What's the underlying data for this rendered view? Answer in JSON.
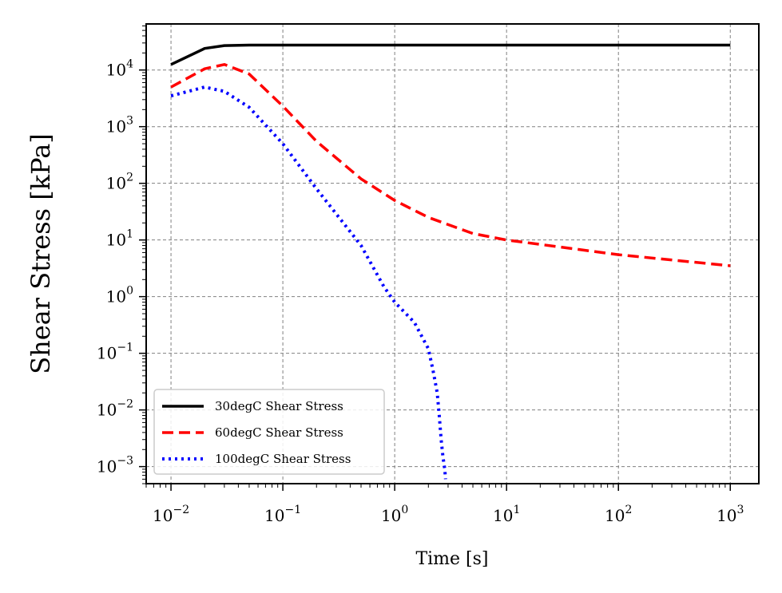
{
  "chart_data": {
    "type": "line",
    "xlabel": "Time [s]",
    "ylabel": "Shear Stress [kPa]",
    "xscale": "log",
    "yscale": "log",
    "xlim": [
      0.006,
      1800
    ],
    "ylim": [
      0.0005,
      65000
    ],
    "grid": true,
    "legend_position": "lower-left",
    "x_ticks": [
      {
        "value": 0.01,
        "base": "10",
        "exp": "−2"
      },
      {
        "value": 0.1,
        "base": "10",
        "exp": "−1"
      },
      {
        "value": 1,
        "base": "10",
        "exp": "0"
      },
      {
        "value": 10,
        "base": "10",
        "exp": "1"
      },
      {
        "value": 100,
        "base": "10",
        "exp": "2"
      },
      {
        "value": 1000,
        "base": "10",
        "exp": "3"
      }
    ],
    "y_ticks": [
      {
        "value": 0.001,
        "base": "10",
        "exp": "−3"
      },
      {
        "value": 0.01,
        "base": "10",
        "exp": "−2"
      },
      {
        "value": 0.1,
        "base": "10",
        "exp": "−1"
      },
      {
        "value": 1,
        "base": "10",
        "exp": "0"
      },
      {
        "value": 10,
        "base": "10",
        "exp": "1"
      },
      {
        "value": 100,
        "base": "10",
        "exp": "2"
      },
      {
        "value": 1000,
        "base": "10",
        "exp": "3"
      },
      {
        "value": 10000,
        "base": "10",
        "exp": "4"
      }
    ],
    "series": [
      {
        "name": "30degC Shear Stress",
        "color": "#000000",
        "style": "solid",
        "x": [
          0.01,
          0.02,
          0.03,
          0.05,
          0.1,
          1,
          10,
          100,
          1000
        ],
        "y": [
          12500,
          24000,
          27000,
          27500,
          27500,
          27500,
          27500,
          27500,
          27500
        ]
      },
      {
        "name": "60degC Shear Stress",
        "color": "#ff0000",
        "style": "dashed",
        "x": [
          0.01,
          0.02,
          0.03,
          0.05,
          0.1,
          0.2,
          0.5,
          1,
          2,
          5,
          10,
          100,
          1000
        ],
        "y": [
          5000,
          10500,
          12500,
          8500,
          2300,
          550,
          120,
          50,
          25,
          13,
          10,
          5.5,
          3.5
        ]
      },
      {
        "name": "100degC Shear Stress",
        "color": "#0000ff",
        "style": "dotted",
        "x": [
          0.01,
          0.02,
          0.03,
          0.05,
          0.1,
          0.2,
          0.5,
          0.8,
          1,
          1.5,
          2,
          2.2,
          2.4,
          2.5,
          2.6,
          2.7,
          2.8,
          2.85
        ],
        "y": [
          3500,
          5000,
          4200,
          2200,
          500,
          80,
          8,
          1.5,
          0.8,
          0.35,
          0.12,
          0.05,
          0.02,
          0.008,
          0.003,
          0.0015,
          0.0009,
          0.0006
        ]
      }
    ]
  }
}
